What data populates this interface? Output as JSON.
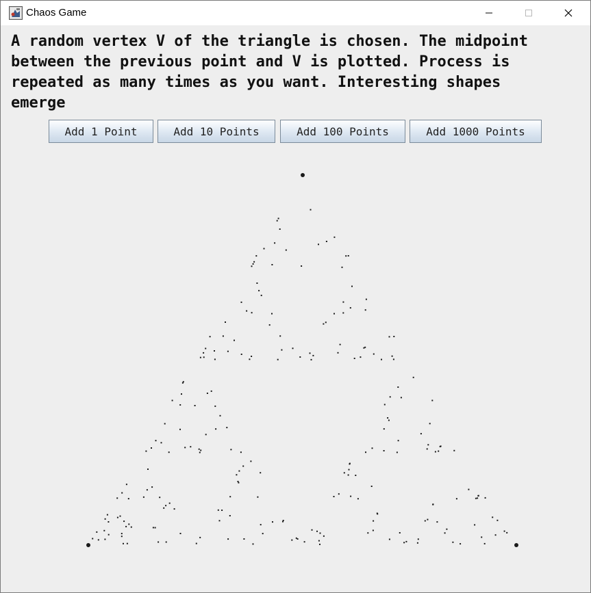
{
  "window": {
    "title": "Chaos Game",
    "icon": "java-app-icon",
    "controls": [
      "minimize-icon",
      "maximize-icon",
      "close-icon"
    ]
  },
  "description_lines": [
    "A random vertex V of the triangle is chosen. The midpoint",
    "between the previous point and V is plotted. Process is",
    "repeated as many times as you want. Interesting shapes",
    "emerge"
  ],
  "buttons": {
    "add_1": "Add 1 Point",
    "add_10": "Add 10 Points",
    "add_100": "Add 100 Points",
    "add_1000": "Add 1000 Points"
  },
  "colors": {
    "point": "#1a1a1a",
    "background": "#eeeeee"
  }
}
